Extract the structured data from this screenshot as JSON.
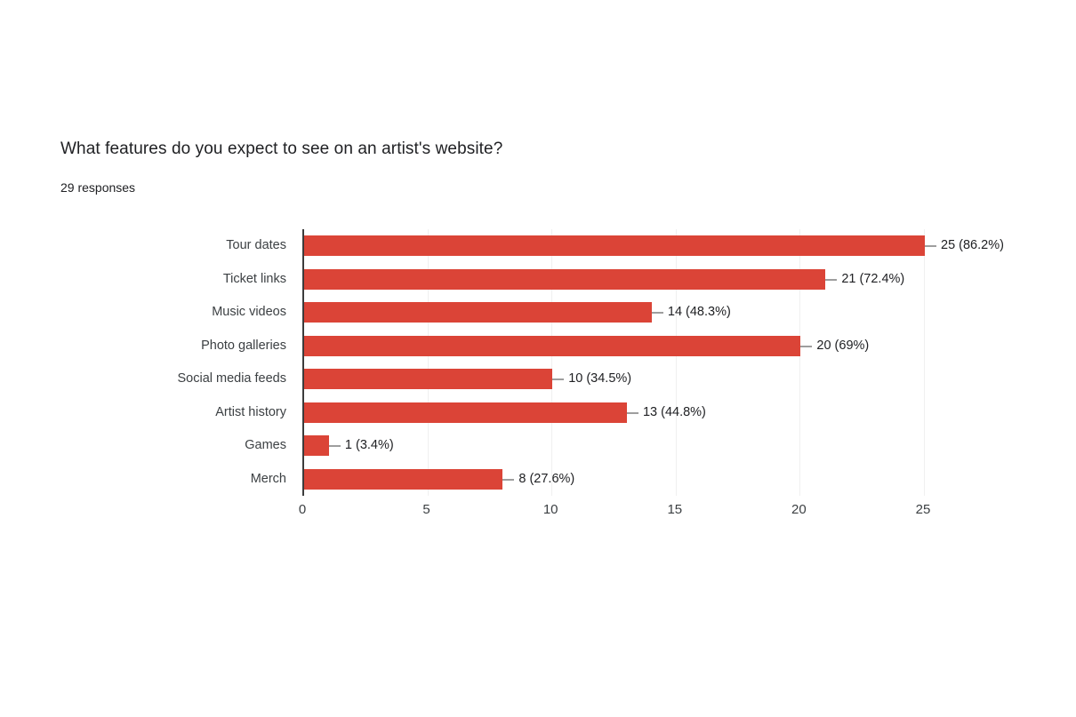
{
  "header": {
    "title": "What features do you expect to see on an artist's website?",
    "responses": "29 responses"
  },
  "chart_data": {
    "type": "bar",
    "orientation": "horizontal",
    "title": "What features do you expect to see on an artist's website?",
    "subtitle": "29 responses",
    "total_responses": 29,
    "categories": [
      "Tour dates",
      "Ticket links",
      "Music videos",
      "Photo galleries",
      "Social media feeds",
      "Artist history",
      "Games",
      "Merch"
    ],
    "values": [
      25,
      21,
      14,
      20,
      10,
      13,
      1,
      8
    ],
    "value_labels": [
      "25 (86.2%)",
      "21 (72.4%)",
      "14 (48.3%)",
      "20 (69%)",
      "10 (34.5%)",
      "13 (44.8%)",
      "1 (3.4%)",
      "8 (27.6%)"
    ],
    "percentages": [
      86.2,
      72.4,
      48.3,
      69.0,
      34.5,
      44.8,
      3.4,
      27.6
    ],
    "xlim": [
      0,
      25
    ],
    "x_ticks": [
      0,
      5,
      10,
      15,
      20,
      25
    ],
    "grid": true,
    "legend": "none",
    "colors": {
      "bar": "#db4437",
      "axis_line": "#3c3c3c",
      "gridline": "#f0f0f0",
      "whisker": "#9e9e9e",
      "title_text": "#202124",
      "label_text": "#3c4043"
    }
  }
}
